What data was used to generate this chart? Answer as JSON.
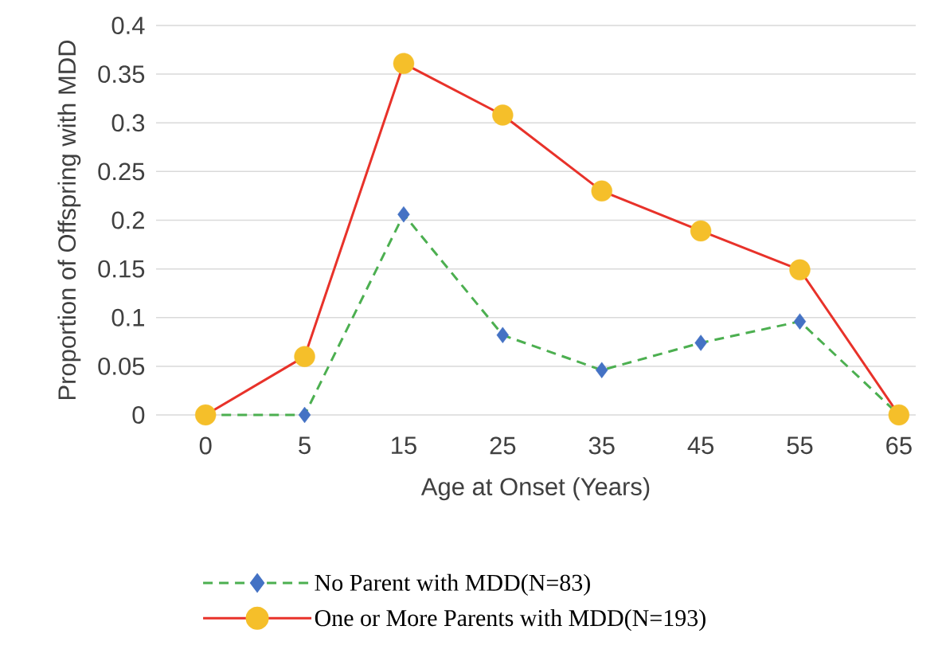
{
  "chart_data": {
    "type": "line",
    "xlabel": "Age at Onset (Years)",
    "ylabel": "Proportion of Offspring with MDD",
    "categories": [
      "0",
      "5",
      "15",
      "25",
      "35",
      "45",
      "55",
      "65"
    ],
    "series": [
      {
        "name": "No Parent with MDD(N=83)",
        "color": "#4caf50",
        "colors": [
          "#4472c4",
          "#4472c4",
          "#4472c4",
          "#4472c4",
          "#4472c4",
          "#4472c4",
          "#4472c4",
          "#4472c4"
        ],
        "marker": "diamond",
        "line_style": "dashed",
        "values": [
          0,
          0,
          0.206,
          0.082,
          0.046,
          0.074,
          0.096,
          0
        ]
      },
      {
        "name": "One or More Parents with MDD(N=193)",
        "color": "#e8322a",
        "colors": [
          "#f5bf2a",
          "#f5bf2a",
          "#f5bf2a",
          "#f5bf2a",
          "#f5bf2a",
          "#f5bf2a",
          "#f5bf2a",
          "#f5bf2a"
        ],
        "marker": "circle",
        "line_style": "solid",
        "values": [
          0,
          0.06,
          0.361,
          0.308,
          0.23,
          0.189,
          0.149,
          0
        ]
      }
    ],
    "ylim": [
      0,
      0.4
    ],
    "yticks": [
      0,
      0.05,
      0.1,
      0.15,
      0.2,
      0.25,
      0.3,
      0.35,
      0.4
    ],
    "grid": "y",
    "legend": "bottom"
  }
}
